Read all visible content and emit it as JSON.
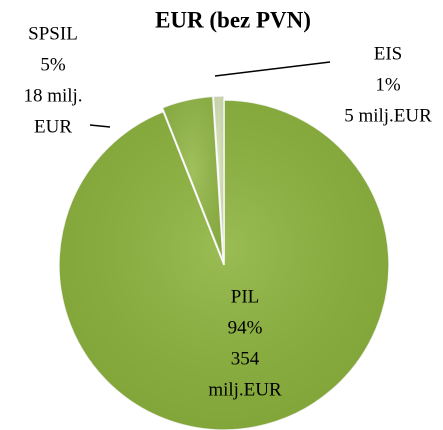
{
  "chart_data": {
    "type": "pie",
    "title": "EUR (bez PVN)",
    "categories": [
      "PIL",
      "SPSIL",
      "EIS"
    ],
    "values": [
      94,
      5,
      1
    ],
    "value_labels": [
      "94%",
      "5%",
      "1%"
    ],
    "amount_labels": [
      [
        "354",
        "milj.EUR"
      ],
      [
        "18 milj.",
        "EUR"
      ],
      [
        "5 milj.EUR"
      ]
    ],
    "colors": [
      "#8cb33c",
      "#93b847",
      "#d5e3b5"
    ]
  }
}
